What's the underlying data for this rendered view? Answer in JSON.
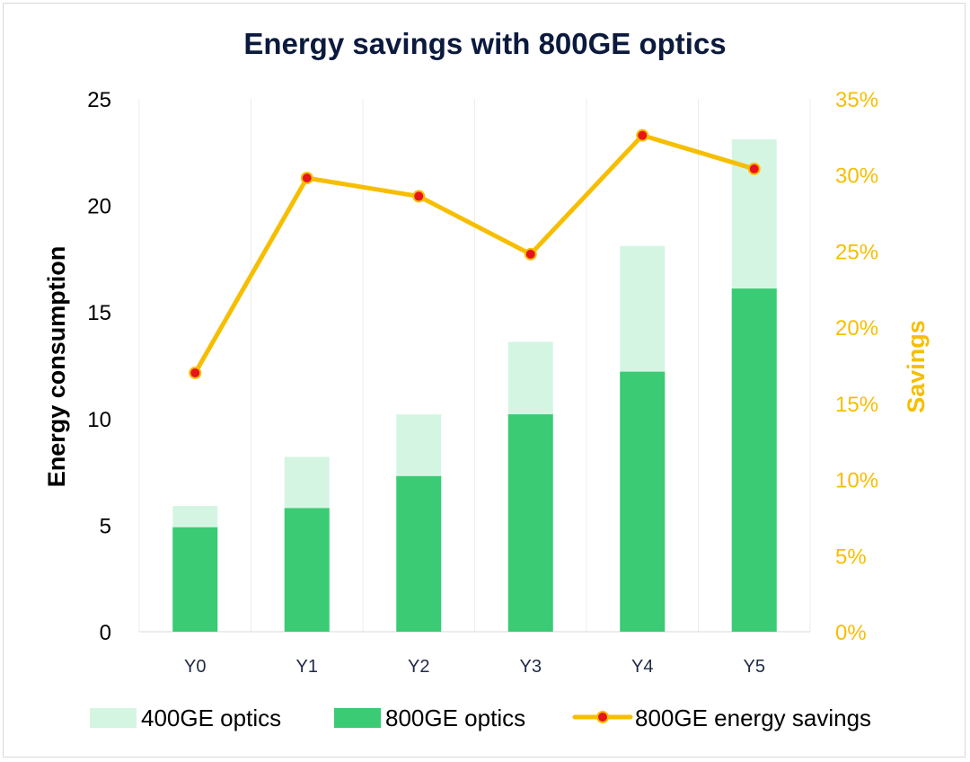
{
  "chart_data": {
    "type": "bar",
    "title": "Energy savings with 800GE optics",
    "categories": [
      "Y0",
      "Y1",
      "Y2",
      "Y3",
      "Y4",
      "Y5"
    ],
    "series": [
      {
        "name": "400GE optics",
        "type": "bar",
        "axis": "left",
        "values": [
          5.9,
          8.2,
          10.2,
          13.6,
          18.1,
          23.1
        ],
        "color": "#d5f5e3"
      },
      {
        "name": "800GE optics",
        "type": "bar",
        "axis": "left",
        "values": [
          4.9,
          5.8,
          7.3,
          10.2,
          12.2,
          16.1
        ],
        "color": "#3acb74"
      },
      {
        "name": "800GE energy savings",
        "type": "line",
        "axis": "right",
        "values": [
          0.17,
          0.298,
          0.286,
          0.248,
          0.326,
          0.304
        ],
        "color": "#f7be00",
        "marker_color": "#e8141c"
      }
    ],
    "ylabel": "Energy consumption",
    "ylabel_right": "Savings",
    "ylim": [
      0,
      25
    ],
    "ylim_right": [
      0,
      0.35
    ],
    "yticks": [
      "0",
      "5",
      "10",
      "15",
      "20",
      "25"
    ],
    "yticks_right": [
      "0%",
      "5%",
      "10%",
      "15%",
      "20%",
      "25%",
      "30%",
      "35%"
    ],
    "grid": "vertical",
    "legend_position": "bottom"
  }
}
